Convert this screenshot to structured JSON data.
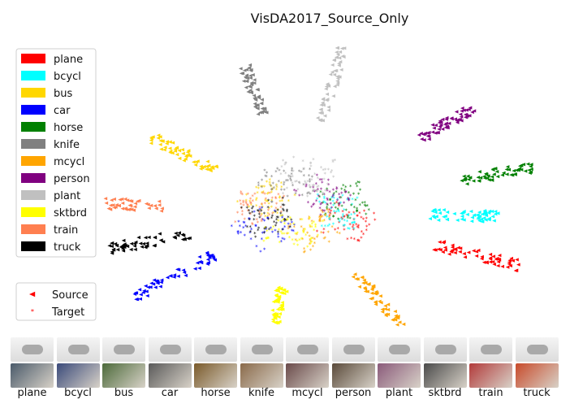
{
  "chart_data": {
    "type": "scatter",
    "title": "VisDA2017_Source_Only",
    "grid": false,
    "axes_visible": false,
    "legend_classes_placement": "upper-left",
    "legend_domains_placement": "lower-left",
    "classes": [
      {
        "name": "plane",
        "color": "#ff0000",
        "source_angle_deg": 18,
        "source_dist": [
          0.6,
          0.96
        ],
        "target_dist": [
          0.22,
          0.58
        ]
      },
      {
        "name": "bcycl",
        "color": "#00ffff",
        "source_angle_deg": 2,
        "source_dist": [
          0.55,
          0.83
        ],
        "target_dist": [
          0.15,
          0.45
        ]
      },
      {
        "name": "bus",
        "color": "#ffd700",
        "source_angle_deg": -146,
        "source_dist": [
          0.4,
          0.72
        ],
        "target_dist": [
          0.08,
          0.4
        ]
      },
      {
        "name": "car",
        "color": "#0000ff",
        "source_angle_deg": 145,
        "source_dist": [
          0.42,
          0.82
        ],
        "target_dist": [
          0.1,
          0.5
        ]
      },
      {
        "name": "horse",
        "color": "#008000",
        "source_angle_deg": -14,
        "source_dist": [
          0.7,
          1.0
        ],
        "target_dist": [
          0.2,
          0.55
        ]
      },
      {
        "name": "knife",
        "color": "#808080",
        "source_angle_deg": -105,
        "source_dist": [
          0.55,
          0.82
        ],
        "target_dist": [
          0.12,
          0.45
        ]
      },
      {
        "name": "mcycl",
        "color": "#ffa500",
        "source_angle_deg": 55,
        "source_dist": [
          0.42,
          0.78
        ],
        "target_dist": [
          0.08,
          0.4
        ]
      },
      {
        "name": "person",
        "color": "#800080",
        "source_angle_deg": -38,
        "source_dist": [
          0.65,
          0.92
        ],
        "target_dist": [
          0.1,
          0.4
        ]
      },
      {
        "name": "plant",
        "color": "#c0c0c0",
        "source_angle_deg": -78,
        "source_dist": [
          0.5,
          0.92
        ],
        "target_dist": [
          0.15,
          0.55
        ]
      },
      {
        "name": "sktbrd",
        "color": "#ffff00",
        "source_angle_deg": 98,
        "source_dist": [
          0.42,
          0.7
        ],
        "target_dist": [
          0.05,
          0.35
        ]
      },
      {
        "name": "train",
        "color": "#ff7f50",
        "source_angle_deg": -177,
        "source_dist": [
          0.55,
          0.92
        ],
        "target_dist": [
          0.1,
          0.45
        ]
      },
      {
        "name": "truck",
        "color": "#000000",
        "source_angle_deg": 165,
        "source_dist": [
          0.45,
          0.8
        ],
        "target_dist": [
          0.05,
          0.4
        ]
      }
    ],
    "domain_legend": [
      {
        "label": "Source",
        "marker": "triangle-left",
        "color": "#ff0000"
      },
      {
        "label": "Target",
        "marker": "star",
        "color": "#ff0000"
      }
    ]
  },
  "strip": {
    "labels": [
      "plane",
      "bcycl",
      "bus",
      "car",
      "horse",
      "knife",
      "mcycl",
      "person",
      "plant",
      "sktbrd",
      "train",
      "truck"
    ],
    "target_tints": [
      "#4a5a6a",
      "#3a4a7a",
      "#4c6a3a",
      "#5a5a5a",
      "#7a5a2a",
      "#8a6a4a",
      "#6a4a4a",
      "#5a4a3a",
      "#8a5a7a",
      "#4a4a4a",
      "#b23a3a",
      "#c84a2a"
    ]
  }
}
